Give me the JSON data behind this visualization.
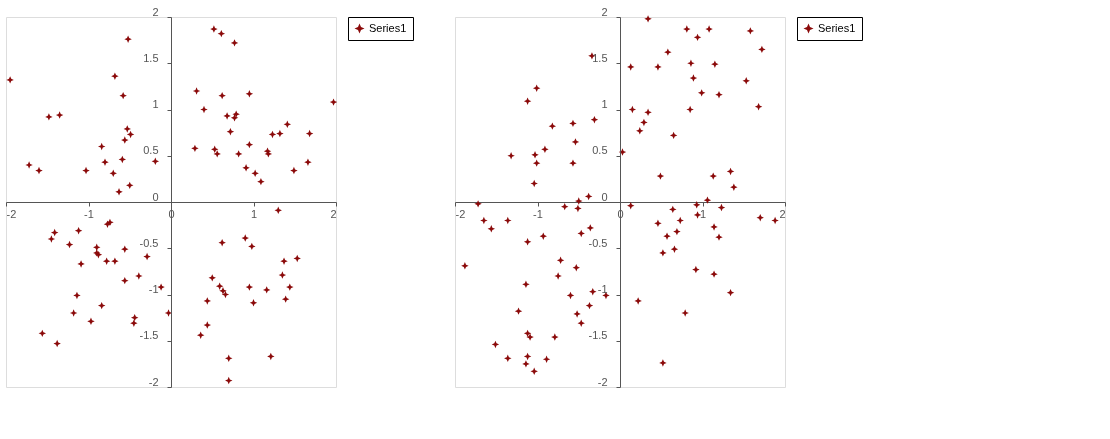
{
  "chart_data": [
    {
      "type": "scatter",
      "xlim": [
        -2,
        2
      ],
      "ylim": [
        -2,
        2
      ],
      "xticks": [
        -2,
        -1,
        0,
        1,
        2
      ],
      "yticks": [
        -2,
        -1.5,
        -1,
        -0.5,
        0,
        0.5,
        1,
        1.5,
        2
      ],
      "grid": false,
      "legend": "right",
      "marker": "star",
      "series": [
        {
          "name": "Series1",
          "color": "#8b0a0a",
          "x": [
            -1.95,
            -0.52,
            -0.68,
            -0.58,
            -1.48,
            -1.35,
            -0.53,
            -0.49,
            -0.56,
            -0.84,
            -1.72,
            -1.6,
            -1.03,
            -0.8,
            -0.59,
            -0.7,
            -0.63,
            -0.5,
            -0.19,
            0.52,
            0.61,
            0.77,
            0.31,
            0.62,
            0.95,
            0.4,
            0.68,
            0.79,
            0.77,
            0.72,
            0.29,
            0.53,
            0.56,
            0.82,
            0.95,
            0.91,
            1.02,
            1.09,
            1.17,
            1.18,
            1.23,
            1.32,
            1.41,
            1.49,
            1.66,
            1.68,
            1.97,
            1.3,
            -1.41,
            -1.45,
            -1.12,
            -0.74,
            -0.77,
            -1.23,
            -0.9,
            -0.9,
            -0.88,
            -0.78,
            -0.68,
            -0.56,
            -0.29,
            -1.09,
            -0.56,
            -0.39,
            -1.14,
            -0.84,
            -1.18,
            -0.97,
            -0.44,
            -0.45,
            -0.12,
            -0.03,
            -1.56,
            -1.38,
            0.62,
            0.9,
            0.98,
            0.5,
            0.59,
            0.63,
            0.66,
            0.44,
            0.44,
            0.36,
            0.7,
            0.7,
            0.95,
            1.16,
            1.0,
            1.37,
            1.53,
            1.35,
            1.44,
            1.39,
            1.21
          ],
          "values": [
            1.32,
            1.76,
            1.36,
            1.15,
            0.92,
            0.94,
            0.79,
            0.73,
            0.67,
            0.6,
            0.4,
            0.34,
            0.34,
            0.43,
            0.46,
            0.31,
            0.11,
            0.18,
            0.44,
            1.87,
            1.82,
            1.72,
            1.2,
            1.15,
            1.17,
            1.0,
            0.93,
            0.95,
            0.91,
            0.76,
            0.58,
            0.57,
            0.52,
            0.52,
            0.62,
            0.37,
            0.31,
            0.22,
            0.55,
            0.52,
            0.73,
            0.74,
            0.84,
            0.34,
            0.43,
            0.74,
            1.08,
            -0.09,
            -0.33,
            -0.4,
            -0.31,
            -0.22,
            -0.24,
            -0.46,
            -0.49,
            -0.55,
            -0.57,
            -0.64,
            -0.64,
            -0.51,
            -0.59,
            -0.67,
            -0.85,
            -0.8,
            -1.01,
            -1.12,
            -1.2,
            -1.29,
            -1.25,
            -1.31,
            -0.92,
            -1.2,
            -1.42,
            -1.53,
            -0.44,
            -0.39,
            -0.48,
            -0.82,
            -0.91,
            -0.96,
            -1.0,
            -1.07,
            -1.33,
            -1.44,
            -1.69,
            -1.93,
            -0.92,
            -0.95,
            -1.09,
            -0.64,
            -0.61,
            -0.79,
            -0.92,
            -1.05,
            -1.67
          ]
        }
      ]
    },
    {
      "type": "scatter",
      "xlim": [
        -2,
        2
      ],
      "ylim": [
        -2,
        2
      ],
      "xticks": [
        -2,
        -1,
        0,
        1,
        2
      ],
      "yticks": [
        -2,
        -1.5,
        -1,
        -0.5,
        0,
        0.5,
        1,
        1.5,
        2
      ],
      "grid": false,
      "legend": "right",
      "marker": "star",
      "series": [
        {
          "name": "Series1",
          "color": "#8b0a0a",
          "x": [
            0.34,
            -0.34,
            0.13,
            0.46,
            0.58,
            0.81,
            0.94,
            1.08,
            0.86,
            1.15,
            0.89,
            0.99,
            1.2,
            0.85,
            0.15,
            0.34,
            0.29,
            0.24,
            0.65,
            0.03,
            1.53,
            1.58,
            1.72,
            1.68,
            -1.01,
            -1.12,
            -0.82,
            -0.57,
            -0.31,
            -0.54,
            -0.91,
            -1.03,
            -1.01,
            -1.32,
            -0.57,
            -1.04,
            0.49,
            1.13,
            1.34,
            1.38,
            -0.38,
            -0.5,
            -1.72,
            1.06,
            -0.51,
            -0.67,
            0.13,
            0.93,
            0.64,
            1.23,
            -1.65,
            -1.56,
            -1.36,
            -1.88,
            -1.12,
            -0.93,
            -0.36,
            -0.47,
            0.46,
            0.73,
            0.57,
            0.69,
            0.94,
            1.14,
            1.2,
            1.7,
            1.88,
            0.52,
            0.66,
            0.92,
            1.14,
            1.34,
            0.22,
            0.79,
            0.52,
            -0.72,
            -0.53,
            -0.75,
            -1.14,
            -0.6,
            -0.33,
            -0.17,
            -0.37,
            -1.23,
            -0.52,
            -0.47,
            -1.12,
            -1.09,
            -0.79,
            -1.51,
            -1.36,
            -1.12,
            -0.89,
            -1.14,
            -1.04
          ],
          "values": [
            1.98,
            1.58,
            1.46,
            1.46,
            1.62,
            1.87,
            1.78,
            1.87,
            1.5,
            1.49,
            1.34,
            1.18,
            1.16,
            1.0,
            1.0,
            0.97,
            0.86,
            0.77,
            0.72,
            0.54,
            1.31,
            1.85,
            1.65,
            1.03,
            1.23,
            1.09,
            0.82,
            0.85,
            0.89,
            0.65,
            0.57,
            0.51,
            0.42,
            0.5,
            0.42,
            0.2,
            0.28,
            0.28,
            0.33,
            0.16,
            0.06,
            0.01,
            -0.02,
            0.02,
            -0.07,
            -0.05,
            -0.04,
            -0.03,
            -0.08,
            -0.06,
            -0.2,
            -0.29,
            -0.2,
            -0.69,
            -0.43,
            -0.37,
            -0.28,
            -0.34,
            -0.23,
            -0.2,
            -0.37,
            -0.32,
            -0.14,
            -0.27,
            -0.38,
            -0.17,
            -0.2,
            -0.55,
            -0.51,
            -0.73,
            -0.78,
            -0.98,
            -1.07,
            -1.2,
            -1.74,
            -0.63,
            -0.71,
            -0.8,
            -0.89,
            -1.01,
            -0.97,
            -1.01,
            -1.12,
            -1.18,
            -1.21,
            -1.31,
            -1.42,
            -1.46,
            -1.46,
            -1.54,
            -1.69,
            -1.67,
            -1.7,
            -1.75,
            -1.83
          ]
        }
      ]
    }
  ]
}
